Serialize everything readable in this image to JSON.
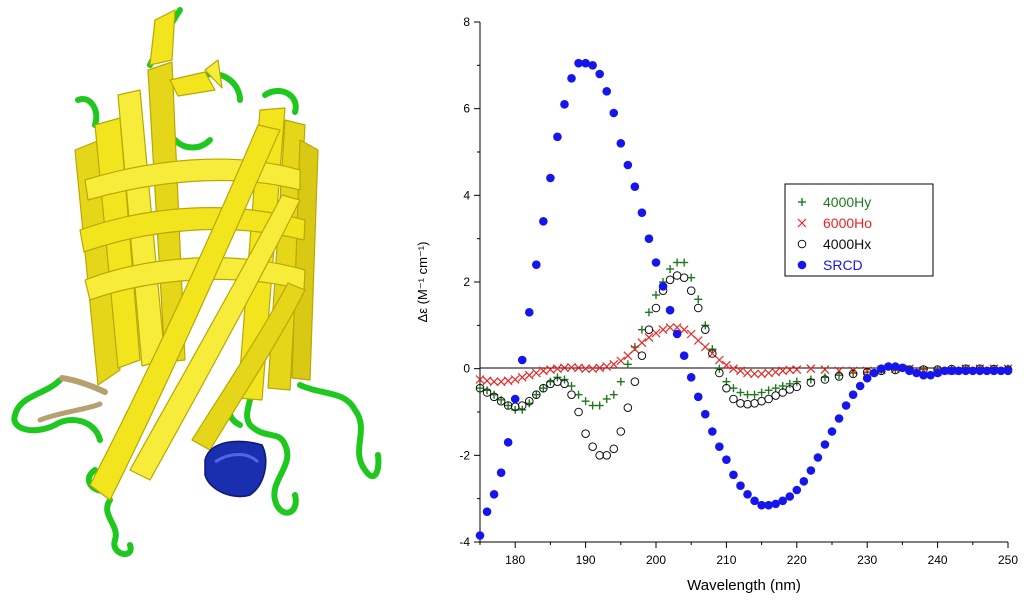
{
  "figure": {
    "image_left": {
      "semantic": "protein-beta-barrel-ribbon-illustration",
      "colors": {
        "strand": "#f2e51e",
        "strand_edge": "#b8a800",
        "loop": "#1ec81e",
        "helix": "#1a2fb0",
        "coil_tan": "#b7a070"
      }
    }
  },
  "chart_data": {
    "type": "scatter",
    "xlabel": "Wavelength (nm)",
    "ylabel": "Δε (M⁻¹ cm⁻¹)",
    "xlim": [
      175,
      250
    ],
    "ylim": [
      -4,
      8
    ],
    "xticks": [
      180,
      190,
      200,
      210,
      220,
      230,
      240,
      250
    ],
    "yticks": [
      -4,
      -2,
      0,
      2,
      4,
      6,
      8
    ],
    "grid": false,
    "legend_position": "upper-right",
    "series": [
      {
        "name": "4000Hy",
        "marker": "plus",
        "color": "#1f7a1f",
        "x": [
          175,
          176,
          177,
          178,
          179,
          180,
          181,
          182,
          183,
          184,
          185,
          186,
          187,
          188,
          189,
          190,
          191,
          192,
          193,
          194,
          195,
          196,
          197,
          198,
          199,
          200,
          201,
          202,
          203,
          204,
          205,
          206,
          207,
          208,
          209,
          210,
          211,
          212,
          213,
          214,
          215,
          216,
          217,
          218,
          219,
          220,
          222,
          224,
          226,
          228,
          230,
          232,
          234,
          236,
          238,
          240,
          242,
          244,
          246,
          248,
          250
        ],
        "y": [
          -0.45,
          -0.5,
          -0.6,
          -0.72,
          -0.85,
          -0.95,
          -0.95,
          -0.8,
          -0.6,
          -0.45,
          -0.3,
          -0.2,
          -0.25,
          -0.4,
          -0.6,
          -0.75,
          -0.85,
          -0.85,
          -0.7,
          -0.6,
          -0.3,
          0.1,
          0.5,
          0.9,
          1.3,
          1.7,
          2.0,
          2.3,
          2.45,
          2.45,
          2.1,
          1.6,
          1.0,
          0.45,
          0.0,
          -0.3,
          -0.45,
          -0.55,
          -0.6,
          -0.6,
          -0.55,
          -0.5,
          -0.45,
          -0.4,
          -0.35,
          -0.3,
          -0.25,
          -0.2,
          -0.15,
          -0.1,
          -0.08,
          -0.05,
          -0.03,
          -0.02,
          -0.02,
          -0.02,
          -0.01,
          0.0,
          0.0,
          0.0,
          0.0
        ]
      },
      {
        "name": "6000Ho",
        "marker": "x",
        "color": "#ee2222",
        "x": [
          175,
          176,
          177,
          178,
          179,
          180,
          181,
          182,
          183,
          184,
          185,
          186,
          187,
          188,
          189,
          190,
          191,
          192,
          193,
          194,
          195,
          196,
          197,
          198,
          199,
          200,
          201,
          202,
          203,
          204,
          205,
          206,
          207,
          208,
          209,
          210,
          211,
          212,
          213,
          214,
          215,
          216,
          217,
          218,
          219,
          220,
          222,
          224,
          226,
          228,
          230,
          232,
          234,
          236,
          238,
          240,
          242,
          244,
          246,
          248,
          250
        ],
        "y": [
          -0.25,
          -0.28,
          -0.3,
          -0.3,
          -0.28,
          -0.25,
          -0.2,
          -0.15,
          -0.1,
          -0.05,
          -0.02,
          0.0,
          0.02,
          0.03,
          0.02,
          0.0,
          0.0,
          0.02,
          0.05,
          0.1,
          0.18,
          0.3,
          0.45,
          0.6,
          0.72,
          0.82,
          0.9,
          0.95,
          0.95,
          0.9,
          0.8,
          0.65,
          0.5,
          0.35,
          0.2,
          0.08,
          0.0,
          -0.05,
          -0.1,
          -0.12,
          -0.12,
          -0.1,
          -0.08,
          -0.05,
          -0.03,
          -0.02,
          0.0,
          -0.02,
          -0.05,
          -0.05,
          -0.05,
          -0.03,
          0.0,
          0.0,
          -0.05,
          -0.08,
          -0.05,
          0.0,
          0.0,
          0.0,
          0.0
        ]
      },
      {
        "name": "4000Hx",
        "marker": "circle-open",
        "color": "#111111",
        "x": [
          175,
          176,
          177,
          178,
          179,
          180,
          181,
          182,
          183,
          184,
          185,
          186,
          187,
          188,
          189,
          190,
          191,
          192,
          193,
          194,
          195,
          196,
          197,
          198,
          199,
          200,
          201,
          202,
          203,
          204,
          205,
          206,
          207,
          208,
          209,
          210,
          211,
          212,
          213,
          214,
          215,
          216,
          217,
          218,
          219,
          220,
          222,
          224,
          226,
          228,
          230,
          232,
          234,
          236,
          238,
          240,
          242,
          244,
          246,
          248,
          250
        ],
        "y": [
          -0.45,
          -0.55,
          -0.65,
          -0.75,
          -0.85,
          -0.88,
          -0.85,
          -0.75,
          -0.6,
          -0.45,
          -0.35,
          -0.3,
          -0.35,
          -0.6,
          -1.0,
          -1.5,
          -1.8,
          -2.0,
          -2.0,
          -1.85,
          -1.45,
          -0.9,
          -0.3,
          0.3,
          0.9,
          1.4,
          1.8,
          2.05,
          2.15,
          2.1,
          1.8,
          1.4,
          0.9,
          0.35,
          -0.1,
          -0.45,
          -0.7,
          -0.8,
          -0.82,
          -0.8,
          -0.75,
          -0.7,
          -0.62,
          -0.55,
          -0.48,
          -0.42,
          -0.32,
          -0.25,
          -0.18,
          -0.12,
          -0.08,
          -0.05,
          -0.03,
          -0.02,
          -0.02,
          -0.02,
          -0.01,
          0.0,
          0.0,
          -0.01,
          -0.02
        ]
      },
      {
        "name": "SRCD",
        "marker": "circle-filled",
        "color": "#1515ee",
        "x": [
          175,
          176,
          177,
          178,
          179,
          180,
          181,
          182,
          183,
          184,
          185,
          186,
          187,
          188,
          189,
          190,
          191,
          192,
          193,
          194,
          195,
          196,
          197,
          198,
          199,
          200,
          201,
          202,
          203,
          204,
          205,
          206,
          207,
          208,
          209,
          210,
          211,
          212,
          213,
          214,
          215,
          216,
          217,
          218,
          219,
          220,
          221,
          222,
          223,
          224,
          225,
          226,
          227,
          228,
          229,
          230,
          231,
          232,
          233,
          234,
          235,
          236,
          237,
          238,
          239,
          240,
          241,
          242,
          243,
          244,
          245,
          246,
          247,
          248,
          249,
          250
        ],
        "y": [
          -3.85,
          -3.3,
          -2.9,
          -2.4,
          -1.7,
          -0.7,
          0.2,
          1.3,
          2.4,
          3.4,
          4.4,
          5.35,
          6.1,
          6.7,
          7.05,
          7.05,
          7.0,
          6.8,
          6.4,
          5.9,
          5.2,
          4.7,
          4.2,
          3.6,
          3.0,
          2.45,
          1.9,
          1.35,
          0.8,
          0.3,
          -0.2,
          -0.65,
          -1.05,
          -1.45,
          -1.8,
          -2.1,
          -2.45,
          -2.7,
          -2.9,
          -3.05,
          -3.15,
          -3.15,
          -3.12,
          -3.05,
          -2.95,
          -2.8,
          -2.6,
          -2.35,
          -2.05,
          -1.75,
          -1.45,
          -1.15,
          -0.85,
          -0.6,
          -0.4,
          -0.22,
          -0.1,
          0.0,
          0.05,
          0.05,
          0.02,
          -0.05,
          -0.1,
          -0.15,
          -0.15,
          -0.1,
          -0.05,
          -0.05,
          -0.05,
          -0.05,
          -0.05,
          -0.05,
          -0.05,
          -0.05,
          -0.05,
          -0.05
        ]
      }
    ]
  }
}
